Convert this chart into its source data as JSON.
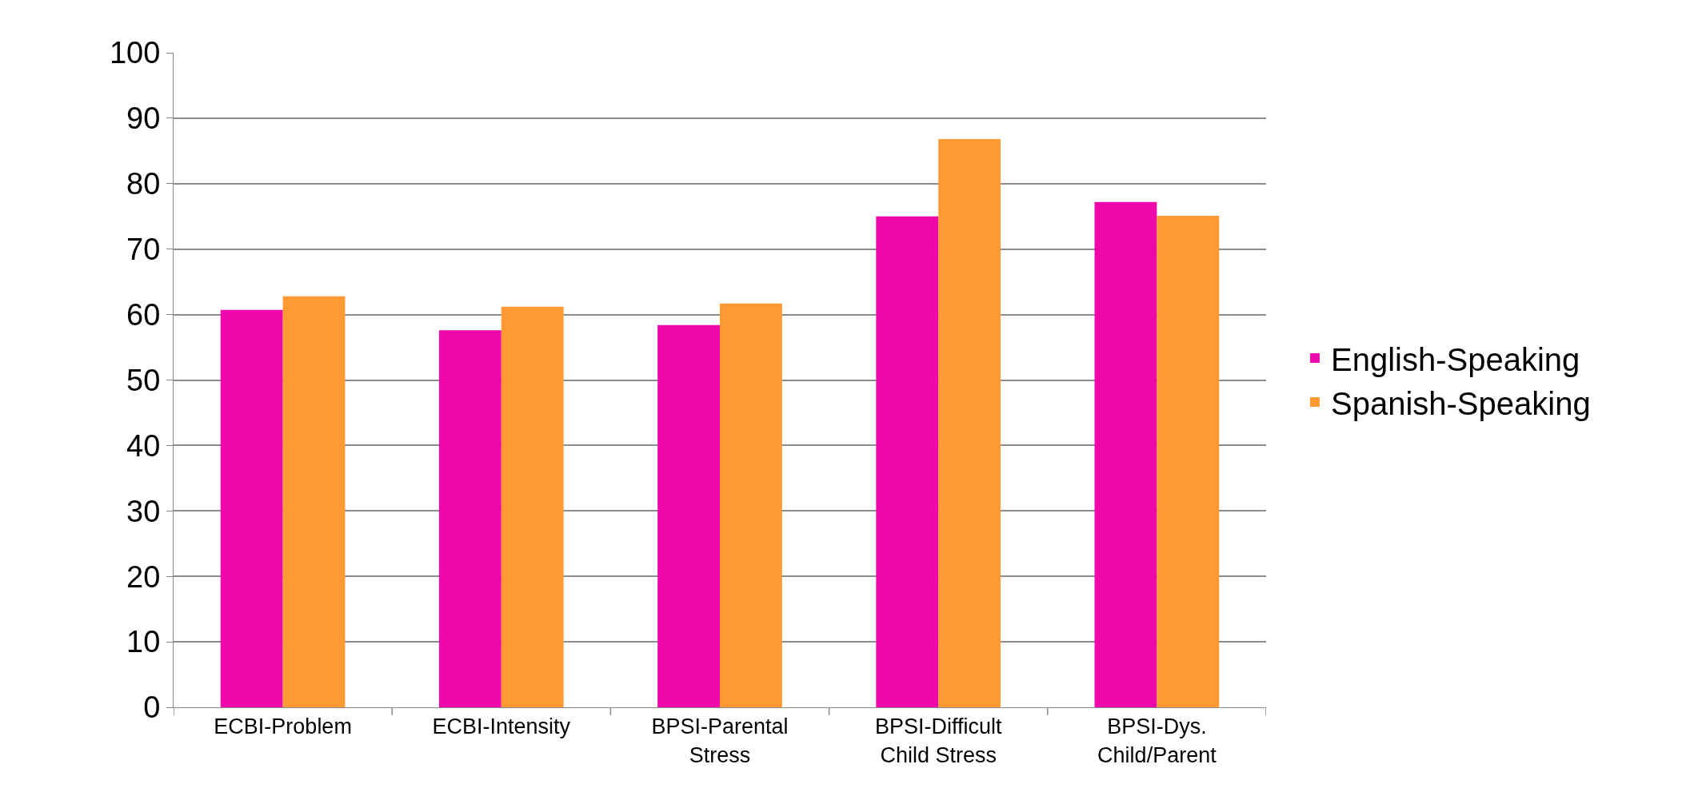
{
  "chart_data": {
    "type": "bar",
    "categories": [
      "ECBI-Problem",
      "ECBI-Intensity",
      "BPSI-Parental Stress",
      "BPSI-Difficult Child Stress",
      "BPSI-Dys. Child/Parent"
    ],
    "series": [
      {
        "name": "English-Speaking",
        "color": "#f007ab",
        "values": [
          60.7,
          57.6,
          58.4,
          75.0,
          77.2
        ]
      },
      {
        "name": "Spanish-Speaking",
        "color": "#ff9a33",
        "values": [
          62.8,
          61.2,
          61.7,
          86.8,
          75.1
        ]
      }
    ],
    "ylim": [
      0,
      100
    ],
    "yticks": [
      0,
      10,
      20,
      30,
      40,
      50,
      60,
      70,
      80,
      90,
      100
    ],
    "grid": "y",
    "legend": "right"
  }
}
